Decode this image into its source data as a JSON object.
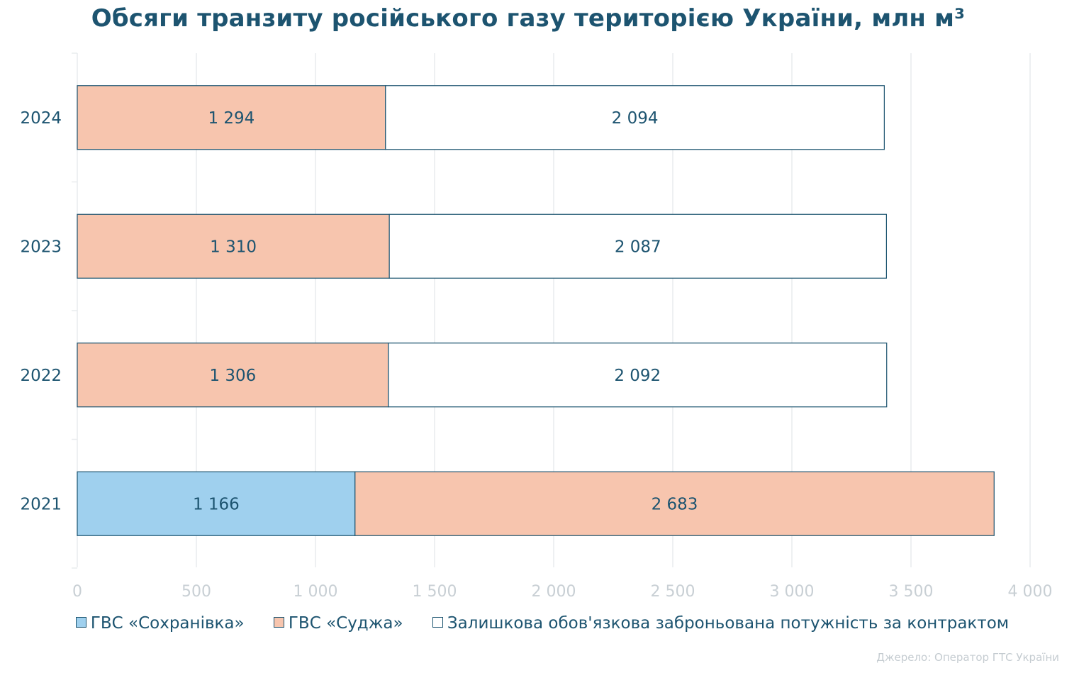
{
  "chart_data": {
    "type": "bar",
    "orientation": "horizontal",
    "stacked": true,
    "title": "Обсяги транзиту російського газу територією України, млн м³",
    "categories": [
      "2024",
      "2023",
      "2022",
      "2021"
    ],
    "series": [
      {
        "name": "ГВС «Сохранівка»",
        "color": "#9fd0ee",
        "values": [
          null,
          null,
          null,
          1166
        ],
        "labels": [
          "",
          "",
          "",
          "1 166"
        ]
      },
      {
        "name": "ГВС «Суджа»",
        "color": "#f7c5ae",
        "values": [
          1294,
          1310,
          1306,
          2683
        ],
        "labels": [
          "1 294",
          "1 310",
          "1 306",
          "2 683"
        ]
      },
      {
        "name": "Залишкова обов'язкова заброньована потужність за контрактом",
        "color": "#ffffff",
        "values": [
          2094,
          2087,
          2092,
          null
        ],
        "labels": [
          "2 094",
          "2 087",
          "2 092",
          ""
        ]
      }
    ],
    "xlim": [
      0,
      4000
    ],
    "xticks": [
      0,
      500,
      1000,
      1500,
      2000,
      2500,
      3000,
      3500,
      4000
    ],
    "xtick_labels": [
      "0",
      "500",
      "1 000",
      "1 500",
      "2 000",
      "2 500",
      "3 000",
      "3 500",
      "4 000"
    ],
    "grid": "vertical",
    "legend_position": "bottom",
    "bar_stroke_color": "#1d5470",
    "grid_color": "#e9ecee"
  },
  "source": "Джерело: Оператор ГТС України"
}
